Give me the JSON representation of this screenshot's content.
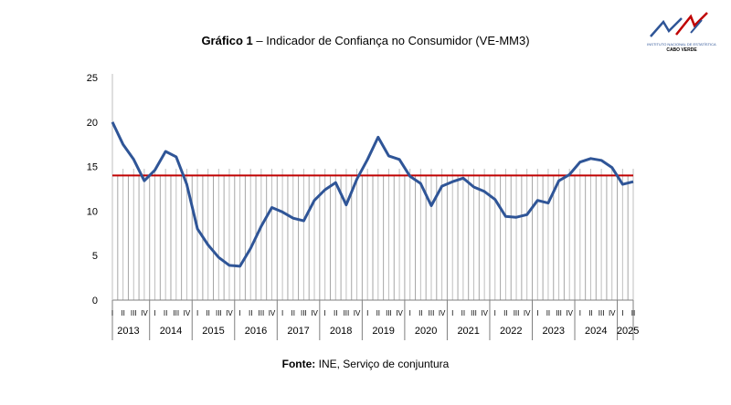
{
  "title_bold": "Gráfico 1",
  "title_rest": " – Indicador de Confiança no Consumidor (VE-MM3)",
  "logo": {
    "line1": "INSTITUTO NACIONAL DE ESTATÍSTICA",
    "line2": "CABO VERDE"
  },
  "source_bold": "Fonte:",
  "source_rest": " INE, Serviço de conjuntura",
  "chart_data": {
    "type": "line",
    "title": "Indicador de Confiança no Consumidor (VE-MM3)",
    "xlabel": "",
    "ylabel": "",
    "ylim": [
      0,
      25
    ],
    "yticks": [
      0,
      5,
      10,
      15,
      20,
      25
    ],
    "grid": "vertical",
    "quarter_labels": [
      "I",
      "II",
      "III",
      "IV"
    ],
    "years": [
      "2013",
      "2014",
      "2015",
      "2016",
      "2017",
      "2018",
      "2019",
      "2020",
      "2021",
      "2022",
      "2023",
      "2024",
      "2025"
    ],
    "series": [
      {
        "color": "#2f5597",
        "values": [
          20.0,
          17.5,
          15.8,
          13.4,
          14.6,
          16.7,
          16.1,
          13.0,
          8.0,
          6.2,
          4.8,
          3.9,
          3.8,
          5.8,
          8.3,
          10.4,
          9.9,
          9.2,
          8.9,
          11.2,
          12.4,
          13.2,
          10.7,
          13.6,
          15.8,
          18.3,
          16.2,
          15.8,
          13.9,
          13.1,
          10.6,
          12.8,
          13.3,
          13.7,
          12.7,
          12.2,
          11.3,
          9.4,
          9.3,
          9.6,
          11.2,
          10.9,
          13.4,
          14.1,
          15.5,
          15.9,
          15.7,
          14.9,
          13.0,
          13.3
        ]
      },
      {
        "color": "#c00000",
        "values": [
          14.0
        ]
      }
    ]
  }
}
